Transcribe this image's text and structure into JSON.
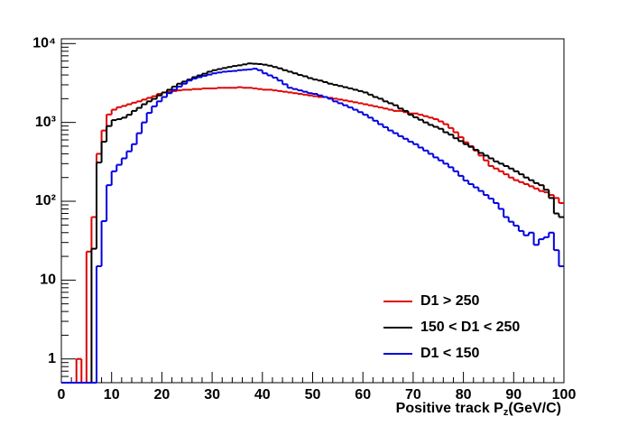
{
  "chart_data": {
    "type": "histogram",
    "log_y": true,
    "x_label": {
      "text": "Positive track P",
      "subscript": "z",
      "suffix": "(GeV/C)"
    },
    "xlim": [
      0,
      100
    ],
    "xticks": [
      0,
      10,
      20,
      30,
      40,
      50,
      60,
      70,
      80,
      90,
      100
    ],
    "ylim": [
      0.5,
      11500
    ],
    "yticks": [
      1,
      10,
      {
        "value": 100,
        "label": "10²"
      },
      {
        "value": 1000,
        "label": "10³"
      },
      {
        "value": 10000,
        "label": "10⁴"
      }
    ],
    "legend": "bottom-right",
    "bins": [
      0,
      1,
      2,
      3,
      4,
      5,
      6,
      7,
      8,
      9,
      10,
      11,
      12,
      13,
      14,
      15,
      16,
      17,
      18,
      19,
      20,
      21,
      22,
      23,
      24,
      25,
      26,
      27,
      28,
      29,
      30,
      31,
      32,
      33,
      34,
      35,
      36,
      37,
      38,
      39,
      40,
      41,
      42,
      43,
      44,
      45,
      46,
      47,
      48,
      49,
      50,
      51,
      52,
      53,
      54,
      55,
      56,
      57,
      58,
      59,
      60,
      61,
      62,
      63,
      64,
      65,
      66,
      67,
      68,
      69,
      70,
      71,
      72,
      73,
      74,
      75,
      76,
      77,
      78,
      79,
      80,
      81,
      82,
      83,
      84,
      85,
      86,
      87,
      88,
      89,
      90,
      91,
      92,
      93,
      94,
      95,
      96,
      97,
      98,
      99,
      100
    ],
    "series": [
      {
        "name": "D1 > 250",
        "color": "#e00000",
        "values": [
          0,
          0,
          0,
          1,
          0,
          23,
          63,
          400,
          790,
          1260,
          1450,
          1560,
          1620,
          1700,
          1780,
          1850,
          1950,
          2050,
          2150,
          2300,
          2400,
          2450,
          2500,
          2550,
          2600,
          2600,
          2650,
          2650,
          2700,
          2700,
          2700,
          2750,
          2750,
          2750,
          2750,
          2800,
          2750,
          2750,
          2700,
          2650,
          2600,
          2600,
          2550,
          2500,
          2450,
          2400,
          2350,
          2300,
          2250,
          2200,
          2150,
          2100,
          2100,
          2050,
          2000,
          1950,
          1900,
          1850,
          1800,
          1750,
          1700,
          1650,
          1600,
          1550,
          1500,
          1450,
          1400,
          1400,
          1350,
          1300,
          1300,
          1250,
          1200,
          1150,
          1100,
          1030,
          950,
          850,
          750,
          650,
          560,
          500,
          440,
          380,
          330,
          280,
          260,
          240,
          220,
          200,
          185,
          175,
          165,
          155,
          145,
          135,
          130,
          120,
          110,
          95
        ]
      },
      {
        "name": "150 < D1 < 250",
        "color": "#000000",
        "values": [
          0,
          0,
          0,
          0,
          0,
          0,
          25,
          310,
          570,
          900,
          1070,
          1100,
          1150,
          1250,
          1400,
          1530,
          1700,
          1850,
          1990,
          2200,
          2400,
          2600,
          2850,
          3100,
          3300,
          3500,
          3750,
          3950,
          4150,
          4400,
          4600,
          4750,
          4900,
          5050,
          5200,
          5300,
          5450,
          5600,
          5550,
          5500,
          5400,
          5250,
          5050,
          4850,
          4600,
          4400,
          4200,
          4000,
          3850,
          3650,
          3500,
          3400,
          3250,
          3100,
          3000,
          2900,
          2800,
          2700,
          2600,
          2500,
          2400,
          2250,
          2100,
          2000,
          1850,
          1750,
          1650,
          1500,
          1400,
          1250,
          1160,
          1080,
          1000,
          930,
          880,
          830,
          750,
          700,
          630,
          580,
          530,
          490,
          450,
          410,
          380,
          350,
          320,
          300,
          280,
          260,
          240,
          220,
          200,
          185,
          170,
          160,
          140,
          110,
          70,
          63
        ]
      },
      {
        "name": "D1 < 150",
        "color": "#0000e0",
        "values": [
          0,
          0,
          0,
          0,
          0,
          0,
          0,
          15,
          56,
          160,
          240,
          290,
          350,
          430,
          530,
          730,
          1000,
          1320,
          1600,
          1850,
          2100,
          2350,
          2600,
          2850,
          3100,
          3400,
          3600,
          3750,
          3900,
          4050,
          4200,
          4300,
          4400,
          4450,
          4500,
          4600,
          4650,
          4700,
          4800,
          4600,
          4200,
          3950,
          3700,
          3400,
          3050,
          2750,
          2650,
          2550,
          2450,
          2350,
          2300,
          2200,
          2100,
          2000,
          1850,
          1750,
          1650,
          1550,
          1450,
          1350,
          1250,
          1150,
          1050,
          950,
          870,
          790,
          730,
          670,
          620,
          570,
          530,
          480,
          440,
          400,
          360,
          330,
          300,
          270,
          240,
          210,
          183,
          165,
          150,
          135,
          120,
          108,
          95,
          80,
          63,
          55,
          49,
          42,
          37,
          40,
          28,
          33,
          35,
          40,
          24,
          15
        ]
      }
    ]
  }
}
